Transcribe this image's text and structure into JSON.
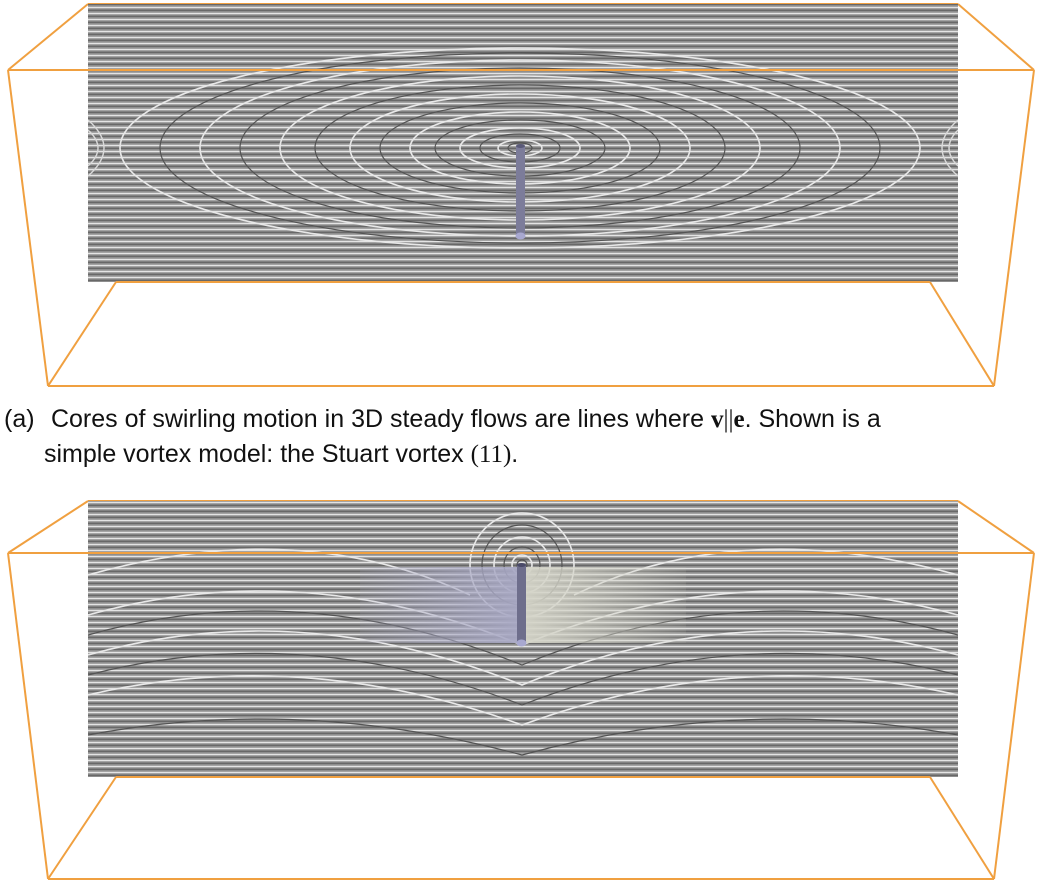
{
  "caption_a": {
    "label": "(a)",
    "line1_pre": "Cores of swirling motion in 3D steady flows are lines where ",
    "math_v": "v",
    "math_par": "||",
    "math_e": "e",
    "line1_post": ". Shown is a",
    "line2_pre": "simple vortex model: the Stuart vortex ",
    "ref": "(11)",
    "line2_post": "."
  },
  "colors": {
    "box_edge": "#F0A040",
    "flow_bg": "#8C8C8C",
    "core_tube": "#7C7C9A",
    "surface_left": "#A8A8C4",
    "surface_right": "#D4D4C8"
  },
  "figures": [
    {
      "name": "stuart-vortex-3d-view",
      "core_line": "vertical vortex core line"
    },
    {
      "name": "vortex-surface-view",
      "core_line": "vortex core line with attached surface"
    }
  ]
}
